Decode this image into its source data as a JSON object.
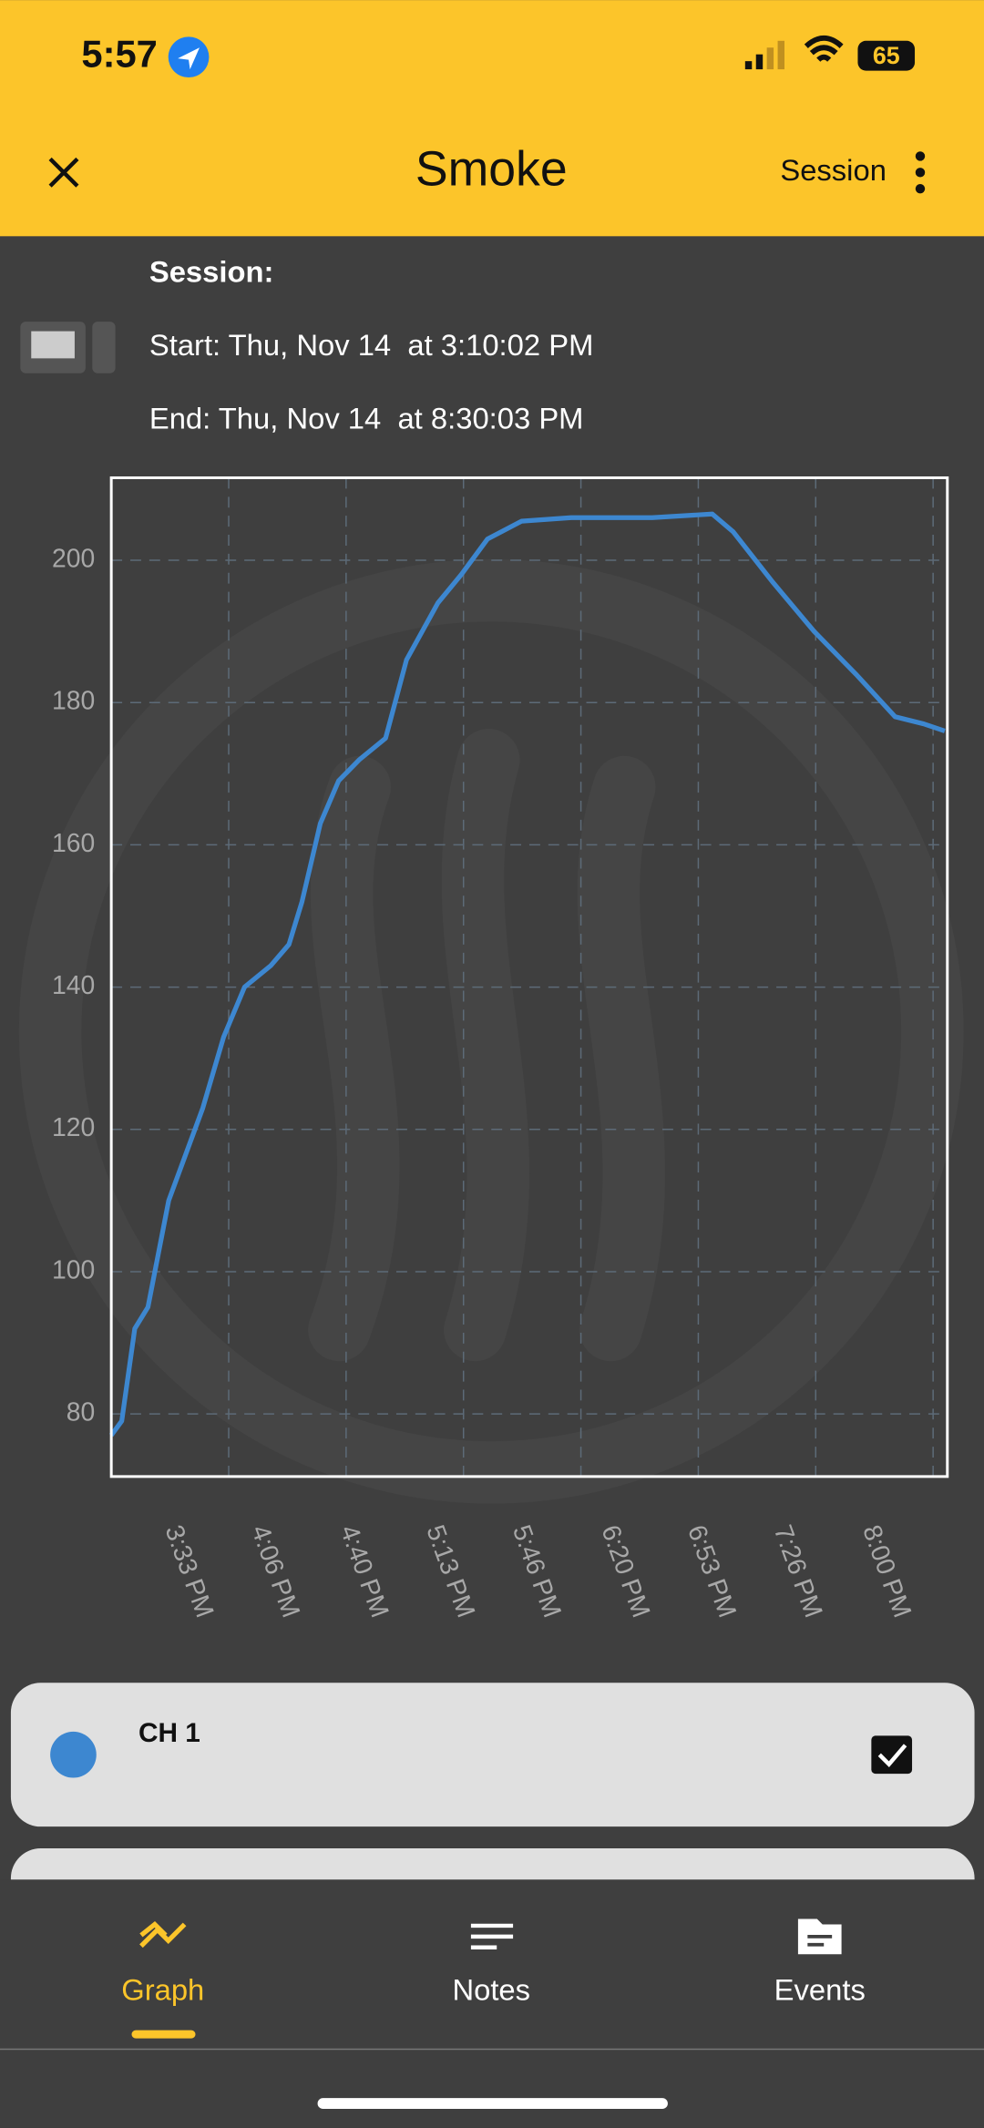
{
  "status_bar": {
    "time": "5:57",
    "battery": "65"
  },
  "header": {
    "title": "Smoke",
    "action": "Session"
  },
  "session": {
    "label": "Session:",
    "start": "Start: Thu, Nov 14  at 3:10:02 PM",
    "end": "End: Thu, Nov 14  at 8:30:03 PM"
  },
  "chart_data": {
    "type": "line",
    "x": [
      "3:10 PM",
      "3:14 PM",
      "3:19 PM",
      "3:24 PM",
      "3:32 PM",
      "3:45 PM",
      "3:53 PM",
      "4:01 PM",
      "4:11 PM",
      "4:18 PM",
      "4:23 PM",
      "4:30 PM",
      "4:37 PM",
      "4:45 PM",
      "4:55 PM",
      "5:03 PM",
      "5:15 PM",
      "5:24 PM",
      "5:34 PM",
      "5:47 PM",
      "6:06 PM",
      "6:37 PM",
      "7:00 PM",
      "7:08 PM",
      "7:23 PM",
      "7:39 PM",
      "7:55 PM",
      "8:10 PM",
      "8:21 PM",
      "8:29 PM"
    ],
    "series": [
      {
        "name": "CH 1",
        "color": "#3d87d0",
        "values": [
          77,
          79,
          92,
          95,
          110,
          123,
          133,
          140,
          143,
          146,
          152,
          163,
          169,
          172,
          175,
          186,
          194,
          198,
          203,
          205.5,
          206,
          206,
          206.5,
          204,
          197,
          190,
          184,
          178,
          177,
          176
        ]
      }
    ],
    "xlim": [
      "3:10 PM",
      "8:30 PM"
    ],
    "xticks": [
      "3:33 PM",
      "4:06 PM",
      "4:40 PM",
      "5:13 PM",
      "5:46 PM",
      "6:20 PM",
      "6:53 PM",
      "7:26 PM",
      "8:00 PM"
    ],
    "ylim": [
      71.2,
      211.6
    ],
    "yticks": [
      80,
      100,
      120,
      140,
      160,
      180,
      200
    ],
    "grid": true
  },
  "tabs": [
    "Graph",
    "Notes",
    "Events"
  ]
}
